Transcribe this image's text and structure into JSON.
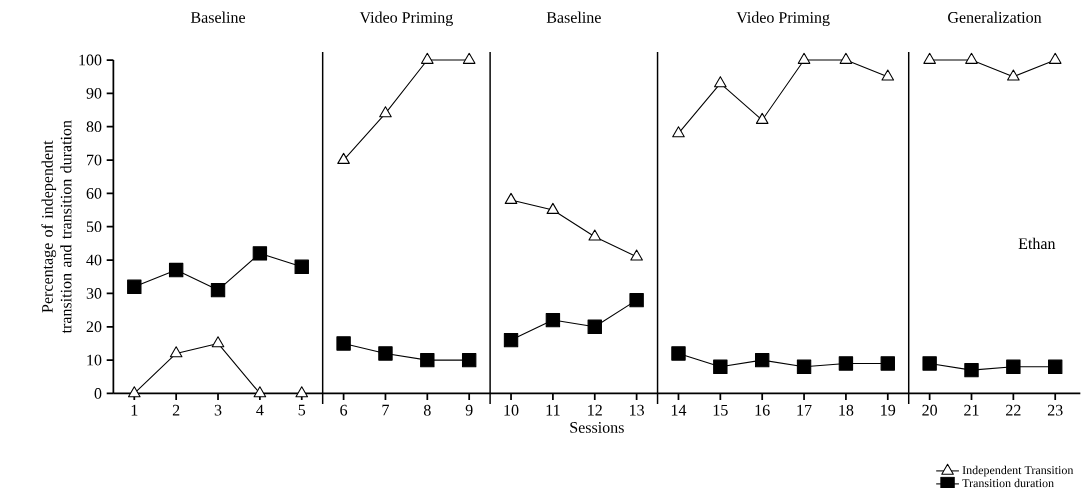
{
  "chart_data": {
    "type": "line",
    "xlabel": "Sessions",
    "ylabel": "Percentage of independent transition and transition duration",
    "x": [
      1,
      2,
      3,
      4,
      5,
      6,
      7,
      8,
      9,
      10,
      11,
      12,
      13,
      14,
      15,
      16,
      17,
      18,
      19,
      20,
      21,
      22,
      23
    ],
    "xlim": [
      0.5,
      23.6
    ],
    "xticks": [
      1,
      2,
      3,
      4,
      5,
      6,
      7,
      8,
      9,
      10,
      11,
      12,
      13,
      14,
      15,
      16,
      17,
      18,
      19,
      20,
      21,
      22,
      23
    ],
    "ylim": [
      0,
      100
    ],
    "yticks": [
      0,
      10,
      20,
      30,
      40,
      50,
      60,
      70,
      80,
      90,
      100
    ],
    "series": [
      {
        "name": "Independent Transition",
        "color": "#000000",
        "marker": "triangle",
        "values": [
          0,
          12,
          15,
          0,
          0,
          70,
          84,
          100,
          100,
          58,
          55,
          47,
          41,
          78,
          93,
          82,
          100,
          100,
          95,
          100,
          100,
          95,
          100
        ]
      },
      {
        "name": "Transition duration",
        "color": "#000000",
        "marker": "square",
        "values": [
          32,
          37,
          31,
          42,
          38,
          15,
          12,
          10,
          10,
          16,
          22,
          20,
          28,
          12,
          8,
          10,
          8,
          9,
          9,
          9,
          7,
          8,
          8
        ]
      }
    ],
    "ref_lines": [
      {
        "axis": "x",
        "value": 5.5
      },
      {
        "axis": "x",
        "value": 9.5
      },
      {
        "axis": "x",
        "value": 13.5
      },
      {
        "axis": "x",
        "value": 19.5
      }
    ],
    "annotations": [
      "Baseline",
      "Video Priming",
      "Baseline",
      "Video Priming",
      "Generalization",
      "Ethan"
    ],
    "legend": "bottom right",
    "grid": false,
    "line_style": "solid"
  }
}
